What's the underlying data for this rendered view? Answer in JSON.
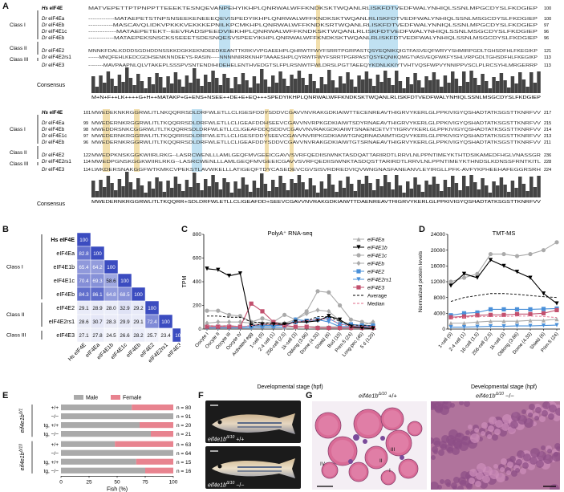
{
  "labels": {
    "A": "A",
    "B": "B",
    "C": "C",
    "D": "D",
    "E": "E",
    "F": "F",
    "G": "G"
  },
  "panelA": {
    "classes": [
      "Class I",
      "Class II",
      "Class III"
    ],
    "consensus_label": "Consensus",
    "block1": {
      "rows": [
        {
          "sp": "Hs",
          "name": "eIF4E",
          "num": "100"
        },
        {
          "sp": "Dr",
          "name": "eIF4Ea",
          "num": "100"
        },
        {
          "sp": "Dr",
          "name": "eIF4Eb",
          "num": "97"
        },
        {
          "sp": "Dr",
          "name": "eIF4E1c",
          "num": "96"
        },
        {
          "sp": "Dr",
          "name": "eIF4Eb",
          "num": "96"
        },
        {
          "sp": "Dr",
          "name": "eIF4E2",
          "num": "121"
        },
        {
          "sp": "Dr",
          "name": "eIF4E2rs1",
          "num": "113"
        },
        {
          "sp": "Dr",
          "name": "eIF4E3",
          "num": "113"
        }
      ],
      "seqs": [
        "MATVEPETTPTPNPPTTEEEKTESNQEVANPEHYIKHPLQNRWALWFFKNDKSKTWQANLRLISKFDTVEDFWALYNHIQLSSNLMPGCDYSLFKDGIEP",
        "------------MATAEPETSTNPSNSEEKENEEEQEVISPEDYIKHPLQNRWALWFFKNDKSKTWQANLRLISKFDTVEDFWALYNHIQLSSNLMSGCDYSLFKDGIEP",
        "-----------MASCAVQLIDKVPKKKVEKKKEPNILKPCMKHPLQNRWALWFFKNDKSRTWQANLRLISKFDTVEDFWALYNNIQLSSNLMPGCDYSLFKDGIEP",
        "------------MATAEPETEKT--EEVRADSPEEDVIEKHPLQNRWALWFFKNDKSKTWQANLRLISKFDTVEDFWALYNHIQLSSNLMSGCDYSLFKDGIEP",
        "------------MATAEPEKSNSCKSSEEETSDESNQESVSPEEYIKHPLQNRWALWFFKNDKSKTWQANLRLISKFDTVEDFWALYNHIQLSSNLMSGCDYSLFKDGIEP",
        "MNNKFDALKDDDSGDHDDNSSKKDGKKEKNDEEDKEANTTKRKVVPGAEEHPLQHRWTFWYFSRRTPGRPASTQSYEQNIKQIGTFASVEQFWRYYSHMIRPGDLTGHSDFHLFKEGIKP",
        "------MNQFEHLKEDCGDHSENKNNDEEYS-RASIN-----NNNNNIRRKNHPTAAAESHPLQYRWTFWYFSRRTPGRPASTQSYEQNIKQMGTVASVEQFWKFYSHLVRPGDLTGHSDFHLFKEGIKP",
        "--------MAVPAAPNLQLVTAKEPLSSSPVSNTENDIHIDEHELENTHVEDGTSLFPLRSNWTFWLDRSLPGTTAEEQYKDNLKKIYTVHTVQSFWPVYNNIPPVSCLPLRCSYHLMRGERRP"
      ],
      "numbers": [
        "100",
        "100",
        "97",
        "96",
        "96",
        "121",
        "113",
        "113"
      ],
      "consensus": "M+N+F++LK++++G+H++MATAKP+G+ENS+NSEE++DE+E+EQ+++SPEDYIKHPLQNRWALWFFKNDKSKTWQANLRLISKFDTVEDFWALYNHIQLSSNLMSGCDYSLFKDGIEP"
    },
    "block2": {
      "rows": [
        {
          "sp": "Hs",
          "name": "eIF4E",
          "num": "217"
        },
        {
          "sp": "Dr",
          "name": "eIF4Ea",
          "num": "215"
        },
        {
          "sp": "Dr",
          "name": "eIF4Eb",
          "num": "214"
        },
        {
          "sp": "Dr",
          "name": "eIF4E1c",
          "num": "213"
        },
        {
          "sp": "Dr",
          "name": "eIF4Eb",
          "num": "211"
        },
        {
          "sp": "Dr",
          "name": "eIF4E2",
          "num": "236"
        },
        {
          "sp": "Dr",
          "name": "eIF4E2rs1",
          "num": "228"
        },
        {
          "sp": "Dr",
          "name": "eIF4E3",
          "num": "224"
        }
      ],
      "start": [
        "101",
        "99",
        "98",
        "97",
        "96",
        "122",
        "114",
        "114"
      ],
      "seqs": [
        "MWEDEKNKRGGRWLITLNKQQRRSDLDRFWLETLLCLIGESFDDYSDDVCGAVVNVRAKGDKIAIWTTECENREAVTHIGRVYKERLGLPPKIVIGYQSHADTATKSGSTTKNRFVV",
        "MWEDERNKRGGRWLITLTKQQRRSDLDRFWLETLLCLIGEAFDDHSEEVCGAVVNVRPKGDKIAIWTSDYRNAEAVTHIGRVYKERLGLPPKIVIGYQSHADTATKSGSTTKNRFVV",
        "MWEDDRSNKCGGRWLITLTKQQRRSDLDRFWLETLLCLIGEAFDDQSDDVCGAVVNVRAKGDKIAIWTSNAENCETVTYIGRVYKERLGLPPKIVIGYQSHADTATKSGSTTKNRFVV",
        "MWEDERNKRGGRWLITLTKQQRRSDLDRFWLETLLCLIGESFDDYSEEVCGAVVNVRPKGDKIAIWTGNQRNADAIMTIGQVYKERLGLPPKIVIGYQSHADTATKSGSTTKNRFVV",
        "MWEDERNKRGGRWLITLTKQQRRSDLDRFWLETLLCLIGEAFDDYSDDVCGAVVNVRAKGDKIAIWTGTSRNAEAVTHIGRVYKERLGLPPKIVIGYQSHADTATKSGSTTKNRFVV",
        "MWEDPKNSKGGKWIIRLRKG--LASRCWENLLLAMLGEQFMVGEEICGAVVSVRFQEDIISIWNKTASDQATTARIRDTLRRVLNLPPNTIMEYKTHTDSIKAMEDFHGLVNASSGR",
        "MWEDPGNSKGGKWIIRLRKG--LASRCWENLLLAMLGEQFMVGEEICGAVVSVRFQEDIISIWNKTASDQSTTARIRDTLRRVLNLPPNTIMEYKTHNDSLKDNSSFRNTKITL",
        "LWKDERSNAKGGFWTKMKCVPEKSTLAVWKELLLATIGEQFTDYCASEDEVCGVSISVRDREDVIQVWNGNASFANEANVLEYIRGLLPFK-AVFYKPHEEHAFEGGRSRH"
      ],
      "consensus": "MWEDERNKRGGRWLITLTKQQRR+SDLDRFWLETLLCLIGEAFDD+SEEVCGAVVNVRAKGDKIAIWTTDAENREAVTHIGRVYKERLGLPPKIVIGYQSHADTATKSGSTTKNRFVV"
    }
  },
  "panelB": {
    "row_labels": [
      "Hs eIF4E",
      "eIF4Ea",
      "eIF4E1b",
      "eIF4E1c",
      "eIF4Eb",
      "eIF4E2",
      "eIF4E2rs1",
      "eIF4E3"
    ],
    "col_labels": [
      "Hs eIF4E",
      "eIF4Ea",
      "eIF4E1b",
      "eIF4E1c",
      "eIF4Eb",
      "eIF4E2",
      "eIF4E2rs1",
      "eIF4E3"
    ],
    "classes": [
      "Class I",
      "Class II",
      "Class III"
    ],
    "matrix": [
      [
        100
      ],
      [
        82.8,
        100
      ],
      [
        65.4,
        64.2,
        100
      ],
      [
        70.4,
        69.3,
        58.6,
        100
      ],
      [
        84.3,
        86.1,
        64.8,
        68.5,
        100
      ],
      [
        29.1,
        28.9,
        28.0,
        32.9,
        29.2,
        100
      ],
      [
        28.6,
        30.7,
        28.3,
        29.9,
        29.1,
        72.4,
        100
      ],
      [
        27.1,
        27.8,
        24.5,
        26.6,
        28.2,
        25.7,
        23.4,
        100
      ]
    ],
    "high_color": "#3b4cc0",
    "low_color": "#ffffff"
  },
  "panelC": {
    "chart_data": {
      "type": "line",
      "title": "PolyA⁺ RNA-seq",
      "ylabel": "TPM",
      "xlabel": "Developmental stage (hpf)",
      "ylim": [
        0,
        800
      ],
      "yticks": [
        "0",
        "200",
        "400",
        "600",
        "800"
      ],
      "categories": [
        "Oocyte I",
        "Oocyte II",
        "Oocyte III",
        "Oocyte IV",
        "Activated egg",
        "1-cell (0)",
        "2-4 cell (1)",
        "256-cell (2.5)",
        "1k-cell (3)",
        "Oblong (3.66)",
        "Dome (4.33)",
        "Shield (6)",
        "Bud (10)",
        "Prim-5 (24)",
        "Long-pec (45)",
        "5 d (120)"
      ],
      "series": [
        {
          "name": "eIF4Ea",
          "color": "#aaaaaa",
          "marker": "triangle-up",
          "values": [
            30,
            25,
            30,
            20,
            25,
            20,
            20,
            15,
            15,
            20,
            20,
            20,
            20,
            25,
            25,
            20
          ]
        },
        {
          "name": "eIF4E1b",
          "color": "#000000",
          "marker": "triangle-down",
          "values": [
            510,
            500,
            450,
            470,
            30,
            40,
            40,
            40,
            60,
            60,
            70,
            110,
            80,
            20,
            10,
            5
          ]
        },
        {
          "name": "eIF4E1c",
          "color": "#aaaaaa",
          "marker": "circle",
          "values": [
            155,
            155,
            120,
            110,
            60,
            90,
            60,
            120,
            80,
            150,
            320,
            310,
            200,
            80,
            60,
            40
          ]
        },
        {
          "name": "eIF4Eb",
          "color": "#aaaaaa",
          "marker": "diamond",
          "values": [
            50,
            60,
            60,
            60,
            50,
            50,
            60,
            50,
            80,
            130,
            160,
            150,
            70,
            40,
            30,
            60
          ]
        },
        {
          "name": "eIF4E2",
          "color": "#4a90d9",
          "marker": "square",
          "values": [
            20,
            20,
            20,
            20,
            25,
            30,
            30,
            30,
            60,
            70,
            80,
            90,
            40,
            40,
            30,
            30
          ]
        },
        {
          "name": "eIF4E2rs1",
          "color": "#4a90d9",
          "marker": "triangle-down",
          "values": [
            10,
            10,
            10,
            10,
            10,
            15,
            15,
            15,
            80,
            70,
            80,
            60,
            20,
            20,
            20,
            10
          ]
        },
        {
          "name": "eIF4E3",
          "color": "#c2506e",
          "marker": "square",
          "values": [
            20,
            20,
            20,
            20,
            215,
            150,
            60,
            30,
            20,
            20,
            10,
            10,
            10,
            10,
            10,
            10
          ]
        },
        {
          "name": "Average",
          "color": "#000000",
          "dash": true,
          "values": [
            110,
            110,
            100,
            100,
            60,
            55,
            45,
            45,
            55,
            70,
            105,
            105,
            65,
            35,
            30,
            25
          ]
        },
        {
          "name": "Median",
          "color": "#e26b8a",
          "dash": true,
          "values": [
            30,
            25,
            30,
            20,
            30,
            40,
            40,
            30,
            60,
            70,
            80,
            90,
            40,
            25,
            25,
            20
          ]
        }
      ],
      "legend": "right"
    }
  },
  "panelD": {
    "chart_data": {
      "type": "line",
      "title": "TMT-MS",
      "ylabel": "Normalized protein levels",
      "xlabel": "Developmental stage (hpf)",
      "ylim": [
        0,
        24000
      ],
      "yticks": [
        "0",
        "4000",
        "8000",
        "12000",
        "16000",
        "20000",
        "24000"
      ],
      "categories": [
        "1-cell (0)",
        "2-4 cell (1)",
        "16-cell (1.5)",
        "256-cell (2.5)",
        "1k-cell (3)",
        "Oblong (3.66)",
        "Dome (4.33)",
        "Shield (6)",
        "Prim-5 (24)"
      ],
      "series": [
        {
          "name": "eIF4E1c",
          "color": "#aaaaaa",
          "values": [
            12000,
            13000,
            14000,
            19000,
            19000,
            18500,
            19000,
            20000,
            22000
          ]
        },
        {
          "name": "eIF4E1b",
          "color": "#000000",
          "values": [
            11000,
            14000,
            13000,
            17500,
            16000,
            14500,
            13000,
            9000,
            6500
          ]
        },
        {
          "name": "Average",
          "color": "#000000",
          "dash": true,
          "values": [
            7000,
            8000,
            8500,
            9000,
            9000,
            8800,
            8500,
            8200,
            8000
          ]
        },
        {
          "name": "eIF4E2",
          "color": "#4a90d9",
          "values": [
            3500,
            4000,
            4200,
            5000,
            5000,
            5000,
            5000,
            5100,
            5200
          ]
        },
        {
          "name": "eIF4E3",
          "color": "#c2506e",
          "values": [
            3000,
            3200,
            3500,
            3600,
            3600,
            3800,
            3800,
            4000,
            4800
          ]
        },
        {
          "name": "Median",
          "color": "#e26b8a",
          "dash": true,
          "values": [
            2800,
            3000,
            3200,
            3200,
            3200,
            3300,
            3300,
            3200,
            2900
          ]
        },
        {
          "name": "eIF4Ea",
          "color": "#aaaaaa",
          "values": [
            1500,
            1500,
            1800,
            2000,
            2000,
            2000,
            2200,
            2200,
            2500
          ]
        },
        {
          "name": "eIF4E2rs1",
          "color": "#4a90d9",
          "values": [
            500,
            500,
            600,
            700,
            700,
            800,
            800,
            900,
            1000
          ]
        }
      ]
    }
  },
  "panelE": {
    "chart_data": {
      "type": "bar",
      "legend": [
        "Male",
        "Female"
      ],
      "colors": [
        "#aaaaaa",
        "#e8838f"
      ],
      "xlabel": "Fish (%)",
      "xticks": [
        "0",
        "25",
        "50",
        "75",
        "100"
      ],
      "groups": [
        {
          "label": "eif4e1b",
          "allele": "Δ/1",
          "rows": [
            {
              "geno": "+/+",
              "male": 63,
              "female": 37,
              "n": "n = 80"
            },
            {
              "geno": "−/−",
              "male": 100,
              "female": 0,
              "n": "n = 91"
            },
            {
              "geno": "tg, +/+",
              "male": 70,
              "female": 30,
              "n": "n = 20"
            },
            {
              "geno": "tg, −/−",
              "male": 80,
              "female": 20,
              "n": "n = 21"
            }
          ]
        },
        {
          "label": "eif4e1b",
          "allele": "Δ/10",
          "rows": [
            {
              "geno": "+/+",
              "male": 48,
              "female": 52,
              "n": "n = 63"
            },
            {
              "geno": "−/−",
              "male": 100,
              "female": 0,
              "n": "n = 64"
            },
            {
              "geno": "tg, +/+",
              "male": 67,
              "female": 33,
              "n": "n = 15"
            },
            {
              "geno": "tg, −/−",
              "male": 75,
              "female": 25,
              "n": "n = 16"
            }
          ]
        }
      ]
    }
  },
  "panelF": {
    "top_caption": "eif4e1b",
    "top_sup": "Δ/10",
    "top_geno": " +/+",
    "bottom_caption": "eif4e1b",
    "bottom_sup": "Δ/10",
    "bottom_geno": " −/−"
  },
  "panelG": {
    "left_title": "eif4e1b",
    "left_sup": "Δ/10",
    "left_geno": " +/+",
    "right_title": "eif4e1b",
    "right_sup": "Δ/10",
    "right_geno": " −/−",
    "stage_labels": [
      "IV",
      "III",
      "II",
      "I"
    ]
  }
}
